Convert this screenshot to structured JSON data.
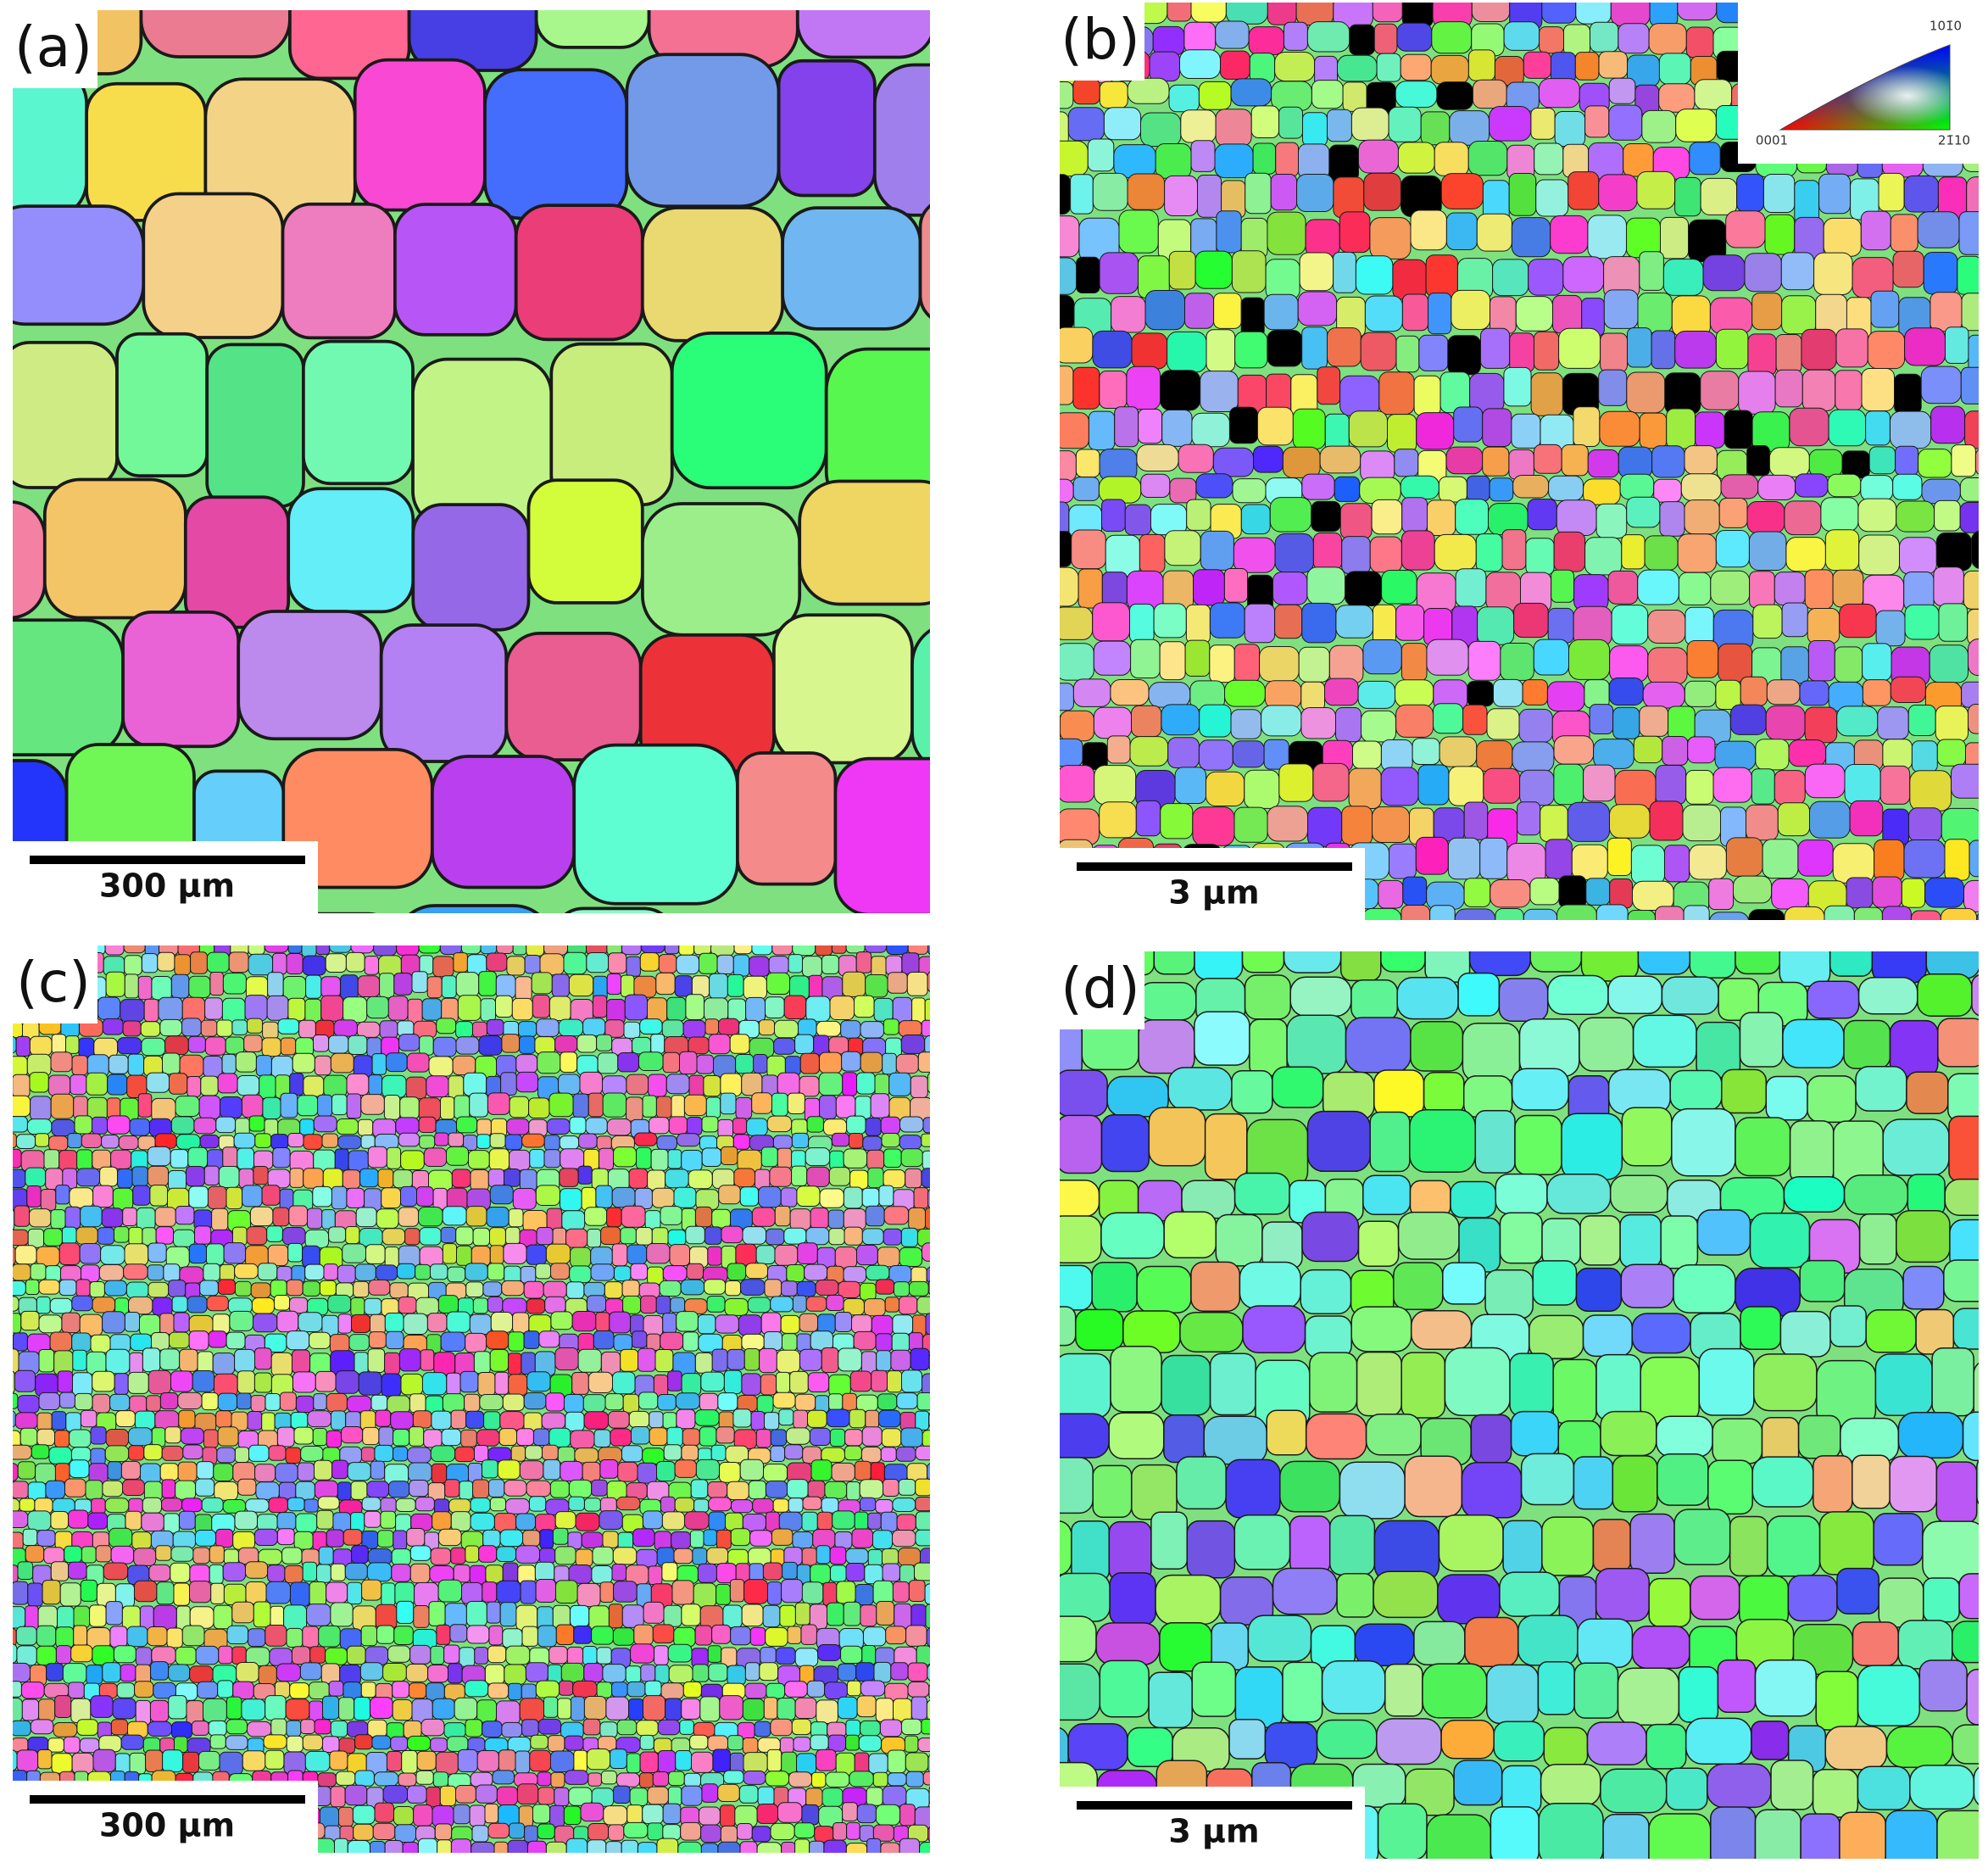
{
  "panels": [
    {
      "label": "(a)",
      "scale_bar": "300 µm"
    },
    {
      "label": "(b)",
      "scale_bar": "3 µm"
    },
    {
      "label": "(c)",
      "scale_bar": "300 µm"
    },
    {
      "label": "(d)",
      "scale_bar": "3 µm"
    }
  ],
  "legend": {
    "top": "101̄0",
    "left": "0001",
    "right": "21̄10"
  }
}
